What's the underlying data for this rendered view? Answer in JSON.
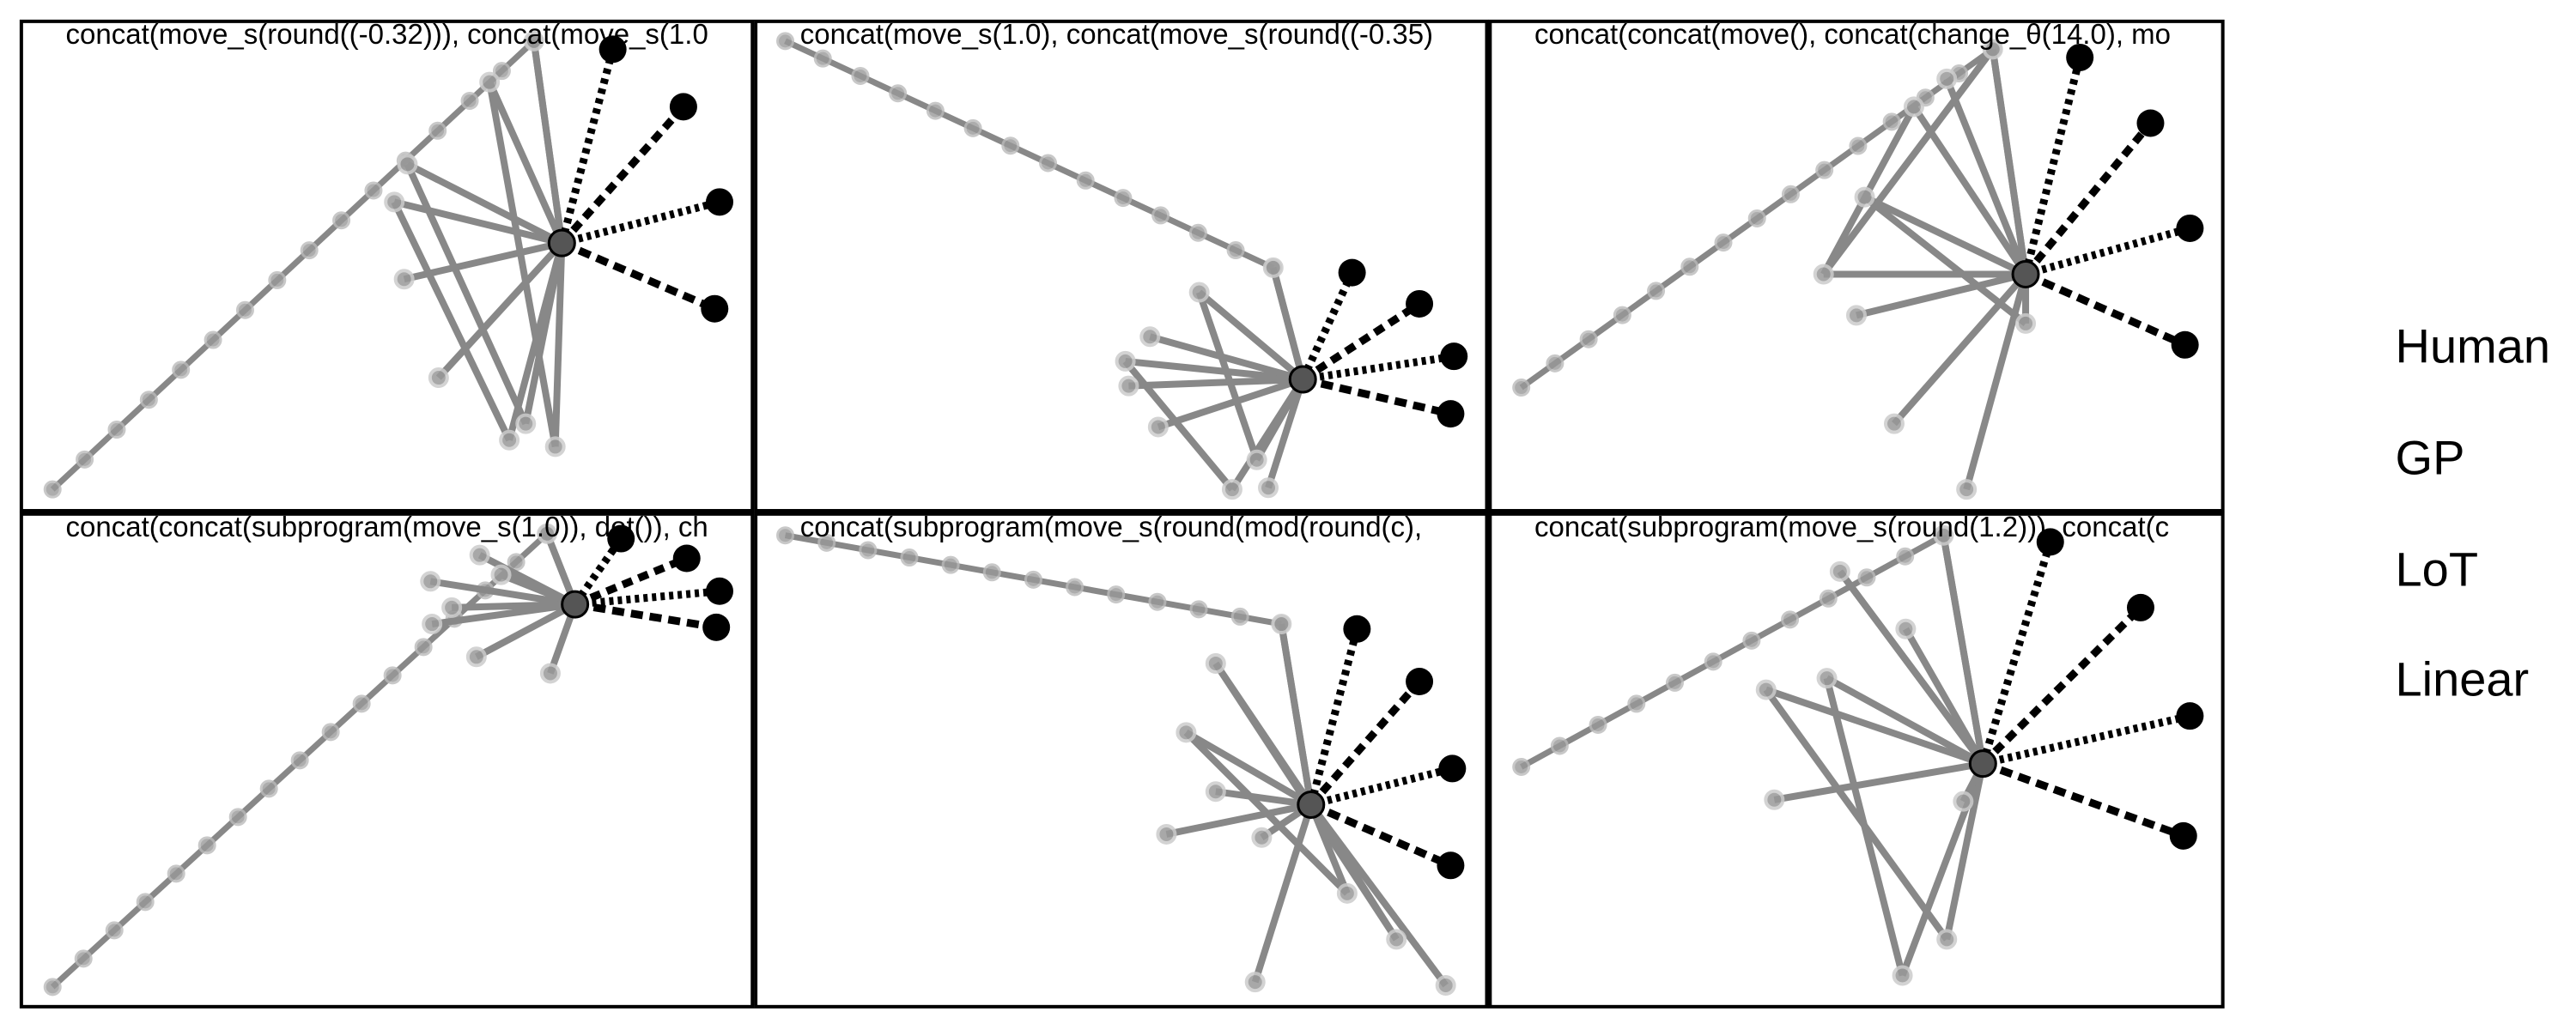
{
  "panels": [
    {
      "title": "concat(move_s(round((-0.32))), concat(move_s(1.0"
    },
    {
      "title": "concat(move_s(1.0), concat(move_s(round((-0.35)"
    },
    {
      "title": "concat(concat(move(), concat(change_θ(14.0), mo"
    },
    {
      "title": "concat(concat(subprogram(move_s(1.0)), dot()), ch"
    },
    {
      "title": "concat(subprogram(move_s(round(mod(round(c), "
    },
    {
      "title": "concat(subprogram(move_s(round(1.2))), concat(c"
    }
  ],
  "legend": [
    "Human",
    "GP",
    "LoT",
    "Linear"
  ]
}
